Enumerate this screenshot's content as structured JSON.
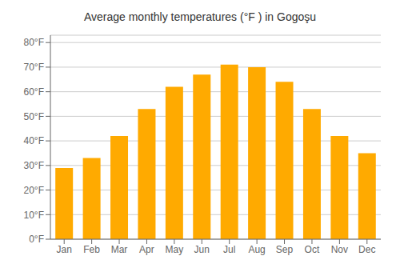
{
  "chart_data": {
    "type": "bar",
    "title": "Average monthly temperatures (°F ) in Gogoşu",
    "categories": [
      "Jan",
      "Feb",
      "Mar",
      "Apr",
      "May",
      "Jun",
      "Jul",
      "Aug",
      "Sep",
      "Oct",
      "Nov",
      "Dec"
    ],
    "values": [
      29,
      33,
      42,
      53,
      62,
      67,
      71,
      70,
      64,
      53,
      42,
      35
    ],
    "color": "#FFAA00",
    "ylim": [
      0,
      83
    ],
    "yticks": [
      {
        "value": 0,
        "label": "0°F"
      },
      {
        "value": 10,
        "label": "10°F"
      },
      {
        "value": 20,
        "label": "20°F"
      },
      {
        "value": 30,
        "label": "30°F"
      },
      {
        "value": 40,
        "label": "40°F"
      },
      {
        "value": 50,
        "label": "50°F"
      },
      {
        "value": 60,
        "label": "60°F"
      },
      {
        "value": 70,
        "label": "70°F"
      },
      {
        "value": 80,
        "label": "80°F"
      }
    ],
    "grid": true
  }
}
